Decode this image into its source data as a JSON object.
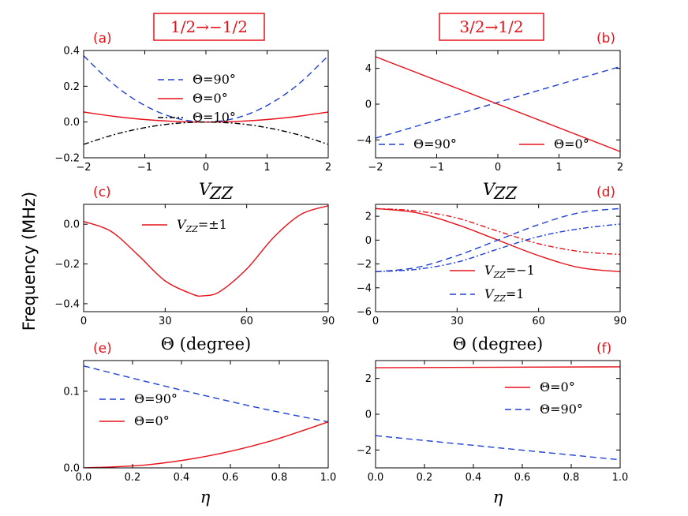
{
  "y_axis_label": "Frequency (MHz)",
  "column_titles": [
    "1/2→−1/2",
    "3/2→1/2"
  ],
  "colors": {
    "red": "#e8111a",
    "blue": "#1f3fd6",
    "black": "#000000"
  },
  "chart_data": [
    {
      "id": "a",
      "type": "line",
      "panel_label": "(a)",
      "xlabel": "V_ZZ",
      "ylabel": "",
      "xlim": [
        -2,
        2
      ],
      "ylim": [
        -0.2,
        0.4
      ],
      "xticks": [
        -2,
        -1,
        0,
        1,
        2
      ],
      "yticks": [
        -0.2,
        0.0,
        0.2,
        0.4
      ],
      "xtick_labels": [
        "−2",
        "−1",
        "0",
        "1",
        "2"
      ],
      "ytick_labels": [
        "−0.2",
        "0.0",
        "0.2",
        "0.4"
      ],
      "legend": "center",
      "series": [
        {
          "name": "Θ=90°",
          "color": "blue",
          "style": "dashed",
          "x": [
            -2,
            -1.5,
            -1,
            -0.5,
            0,
            0.5,
            1,
            1.5,
            2
          ],
          "y": [
            0.37,
            0.208,
            0.0925,
            0.023,
            0.0,
            0.023,
            0.0925,
            0.208,
            0.37
          ]
        },
        {
          "name": "Θ=0°",
          "color": "red",
          "style": "solid",
          "x": [
            -2,
            -1.5,
            -1,
            -0.5,
            0,
            0.5,
            1,
            1.5,
            2
          ],
          "y": [
            0.056,
            0.0315,
            0.014,
            0.0035,
            0.0,
            0.0035,
            0.014,
            0.0315,
            0.056
          ]
        },
        {
          "name": "Θ=10°",
          "color": "black",
          "style": "dashdot",
          "x": [
            -2,
            -1.5,
            -1,
            -0.5,
            0,
            0.5,
            1,
            1.5,
            2
          ],
          "y": [
            -0.125,
            -0.0703,
            -0.0313,
            -0.0078,
            0.0,
            -0.0078,
            -0.0313,
            -0.0703,
            -0.125
          ]
        }
      ]
    },
    {
      "id": "b",
      "type": "line",
      "panel_label": "(b)",
      "xlabel": "V_ZZ",
      "ylabel": "",
      "xlim": [
        -2,
        2
      ],
      "ylim": [
        -6,
        6
      ],
      "xticks": [
        -2,
        -1,
        0,
        1,
        2
      ],
      "yticks": [
        -4,
        0,
        4
      ],
      "xtick_labels": [
        "−2",
        "−1",
        "0",
        "1",
        "2"
      ],
      "ytick_labels": [
        "−4",
        "0",
        "4"
      ],
      "legend": "bottom",
      "series": [
        {
          "name": "Θ=90°",
          "color": "blue",
          "style": "dashed",
          "x": [
            -2,
            2
          ],
          "y": [
            -3.8,
            4.2
          ]
        },
        {
          "name": "Θ=0°",
          "color": "red",
          "style": "solid",
          "x": [
            -2,
            2
          ],
          "y": [
            5.3,
            -5.3
          ]
        }
      ]
    },
    {
      "id": "c",
      "type": "line",
      "panel_label": "(c)",
      "xlabel": "Θ (degree)",
      "ylabel": "",
      "xlim": [
        0,
        90
      ],
      "ylim": [
        -0.44,
        0.1
      ],
      "xticks": [
        0,
        30,
        60,
        90
      ],
      "yticks": [
        -0.4,
        -0.2,
        0.0
      ],
      "xtick_labels": [
        "0",
        "30",
        "60",
        "90"
      ],
      "ytick_labels": [
        "−0.4",
        "−0.2",
        "0.0"
      ],
      "legend": "top-center",
      "series": [
        {
          "name": "V_ZZ=±1",
          "color": "red",
          "style": "solid",
          "x": [
            0,
            10,
            20,
            30,
            40,
            44,
            50,
            60,
            70,
            80,
            90
          ],
          "y": [
            0.014,
            -0.035,
            -0.155,
            -0.285,
            -0.352,
            -0.36,
            -0.34,
            -0.225,
            -0.065,
            0.05,
            0.093
          ]
        }
      ]
    },
    {
      "id": "d",
      "type": "line",
      "panel_label": "(d)",
      "xlabel": "Θ (degree)",
      "ylabel": "",
      "xlim": [
        0,
        90
      ],
      "ylim": [
        -6,
        3
      ],
      "xticks": [
        0,
        30,
        60,
        90
      ],
      "yticks": [
        -6,
        -4,
        -2,
        0,
        2
      ],
      "xtick_labels": [
        "0",
        "30",
        "60",
        "90"
      ],
      "ytick_labels": [
        "−6",
        "−4",
        "−2",
        "0",
        "2"
      ],
      "legend": "bottom-center",
      "series": [
        {
          "name": "V_ZZ=−1",
          "color": "red",
          "style": "solid",
          "x": [
            0,
            15,
            30,
            45,
            60,
            75,
            90
          ],
          "y": [
            2.65,
            2.3,
            1.3,
            0.0,
            -1.3,
            -2.3,
            -2.65
          ]
        },
        {
          "name": "V_ZZ=1",
          "color": "blue",
          "style": "dashed",
          "x": [
            0,
            15,
            30,
            45,
            60,
            75,
            90
          ],
          "y": [
            -2.65,
            -2.3,
            -1.3,
            0.0,
            1.3,
            2.3,
            2.65
          ]
        },
        {
          "name": "",
          "color": "red",
          "style": "dashdot",
          "x": [
            0,
            15,
            30,
            45,
            60,
            75,
            90
          ],
          "y": [
            2.65,
            2.45,
            1.85,
            0.75,
            -0.3,
            -0.95,
            -1.2
          ]
        },
        {
          "name": "",
          "color": "blue",
          "style": "dashdot",
          "x": [
            0,
            15,
            30,
            45,
            60,
            75,
            90
          ],
          "y": [
            -2.65,
            -2.45,
            -1.85,
            -0.75,
            0.3,
            0.95,
            1.35
          ]
        }
      ]
    },
    {
      "id": "e",
      "type": "line",
      "panel_label": "(e)",
      "xlabel": "η",
      "ylabel": "",
      "xlim": [
        0,
        1
      ],
      "ylim": [
        0,
        0.14
      ],
      "xticks": [
        0,
        0.2,
        0.4,
        0.6,
        0.8,
        1.0
      ],
      "yticks": [
        0.0,
        0.1
      ],
      "xtick_labels": [
        "0.0",
        "0.2",
        "0.4",
        "0.6",
        "0.8",
        "1.0"
      ],
      "ytick_labels": [
        "0.0",
        "0.1"
      ],
      "legend": "left",
      "series": [
        {
          "name": "Θ=90°",
          "color": "blue",
          "style": "dashed",
          "x": [
            0,
            0.25,
            0.5,
            0.75,
            1.0
          ],
          "y": [
            0.133,
            0.113,
            0.094,
            0.076,
            0.06
          ]
        },
        {
          "name": "Θ=0°",
          "color": "red",
          "style": "solid",
          "x": [
            0,
            0.25,
            0.5,
            0.75,
            1.0
          ],
          "y": [
            0.0,
            0.0037,
            0.015,
            0.0338,
            0.06
          ]
        }
      ]
    },
    {
      "id": "f",
      "type": "line",
      "panel_label": "(f)",
      "xlabel": "η",
      "ylabel": "",
      "xlim": [
        0,
        1
      ],
      "ylim": [
        -3,
        3
      ],
      "xticks": [
        0,
        0.2,
        0.4,
        0.6,
        0.8,
        1.0
      ],
      "yticks": [
        -2,
        0,
        2
      ],
      "xtick_labels": [
        "0.0",
        "0.2",
        "0.4",
        "0.6",
        "0.8",
        "1.0"
      ],
      "ytick_labels": [
        "−2",
        "0",
        "2"
      ],
      "legend": "right",
      "series": [
        {
          "name": "Θ=0°",
          "color": "red",
          "style": "solid",
          "x": [
            0,
            1.0
          ],
          "y": [
            2.6,
            2.65
          ]
        },
        {
          "name": "Θ=90°",
          "color": "blue",
          "style": "dashed",
          "x": [
            0,
            1.0
          ],
          "y": [
            -1.2,
            -2.55
          ]
        }
      ]
    }
  ]
}
